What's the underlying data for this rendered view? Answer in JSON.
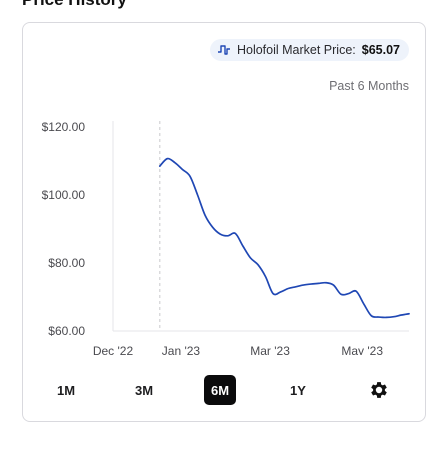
{
  "section": {
    "title": "Price History"
  },
  "badge": {
    "label": "Holofoil Market Price:",
    "price": "$65.07"
  },
  "range_caption": "Past 6 Months",
  "tabs": [
    {
      "label": "1M",
      "active": false
    },
    {
      "label": "3M",
      "active": false
    },
    {
      "label": "6M",
      "active": true
    },
    {
      "label": "1Y",
      "active": false
    }
  ],
  "icons": {
    "badge": "price-trend-icon",
    "settings": "gear-icon"
  },
  "colors": {
    "line": "#1f47b4",
    "active_tab": "#0b0b0c",
    "badge_bg": "#eef3fb"
  },
  "chart_data": {
    "type": "line",
    "title": "",
    "xlabel": "",
    "ylabel": "",
    "x_tick_labels": [
      "Dec '22",
      "Jan '23",
      "Mar '23",
      "May '23"
    ],
    "y_tick_labels": [
      "$120.00",
      "$100.00",
      "$80.00",
      "$60.00"
    ],
    "y_ticks": [
      120,
      100,
      80,
      60
    ],
    "ylim": [
      60,
      120
    ],
    "grid": false,
    "series": [
      {
        "name": "",
        "x": [
          "2023-01-01",
          "2023-01-06",
          "2023-01-11",
          "2023-01-16",
          "2023-01-21",
          "2023-01-26",
          "2023-01-31",
          "2023-02-05",
          "2023-02-10",
          "2023-02-15",
          "2023-02-20",
          "2023-02-25",
          "2023-03-02",
          "2023-03-07",
          "2023-03-12",
          "2023-03-17",
          "2023-03-22",
          "2023-03-27",
          "2023-04-01",
          "2023-04-06",
          "2023-04-11",
          "2023-04-16",
          "2023-04-21",
          "2023-04-26",
          "2023-05-01",
          "2023-05-06",
          "2023-05-11",
          "2023-05-16",
          "2023-05-21",
          "2023-05-26",
          "2023-05-31",
          "2023-06-05",
          "2023-06-10",
          "2023-06-15"
        ],
        "y": [
          108.5,
          110.7,
          109.5,
          107.5,
          105.5,
          100,
          94,
          90.5,
          88.5,
          88,
          88.7,
          85,
          81.5,
          79.5,
          76,
          71,
          71.5,
          72.5,
          73,
          73.5,
          73.8,
          74,
          74.2,
          73.5,
          70.8,
          71,
          71.7,
          68,
          64.5,
          64.1,
          64,
          64.2,
          64.7,
          65.07
        ]
      }
    ],
    "reference_line": {
      "x": "2023-01-01",
      "style": "dashed"
    }
  }
}
